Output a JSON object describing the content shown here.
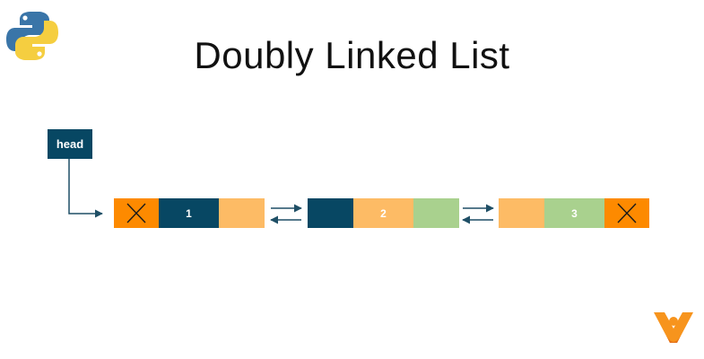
{
  "title": "Doubly Linked List",
  "head_label": "head",
  "nodes": [
    {
      "prev": "null-x-icon",
      "value": "1",
      "next": "pointer"
    },
    {
      "prev": "pointer",
      "value": "2",
      "next": "pointer"
    },
    {
      "prev": "pointer",
      "value": "3",
      "next": "null-x-icon"
    }
  ],
  "colors": {
    "dark_teal": "#074763",
    "orange": "#FD8A00",
    "light_orange": "#FDBB65",
    "light_green": "#A9D18E",
    "arrow": "#1F4F66"
  },
  "icons": [
    "python-logo-icon",
    "brand-logo-icon",
    "null-x-icon"
  ]
}
